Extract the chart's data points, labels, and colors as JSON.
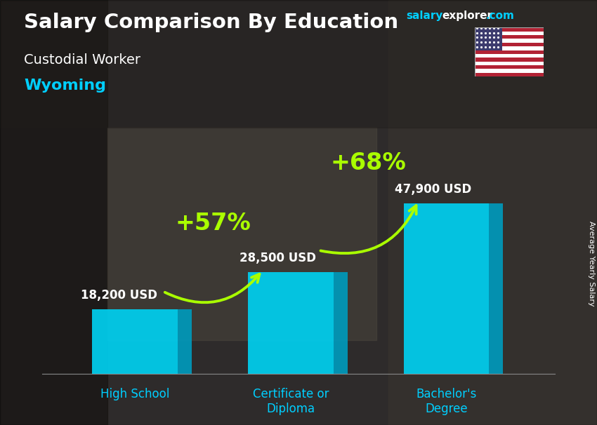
{
  "title_main": "Salary Comparison By Education",
  "subtitle_job": "Custodial Worker",
  "subtitle_location": "Wyoming",
  "categories": [
    "High School",
    "Certificate or\nDiploma",
    "Bachelor's\nDegree"
  ],
  "values": [
    18200,
    28500,
    47900
  ],
  "value_labels": [
    "18,200 USD",
    "28,500 USD",
    "47,900 USD"
  ],
  "bar_color_face": "#00d0f0",
  "bar_color_side": "#0099bb",
  "bar_color_top": "#55e0ff",
  "pct_labels": [
    "+57%",
    "+68%"
  ],
  "pct_color": "#aaff00",
  "arrow_color": "#aaff00",
  "ylabel": "Average Yearly Salary",
  "text_color_white": "#ffffff",
  "text_color_cyan": "#00cfff",
  "bar_width": 0.55,
  "ylim": [
    0,
    62000
  ],
  "bar_positions": [
    0,
    1,
    2
  ],
  "bg_color": "#4a4a4a",
  "salary_color": "#00cfff",
  "explorer_color": "#ffffff",
  "com_color": "#00cfff"
}
